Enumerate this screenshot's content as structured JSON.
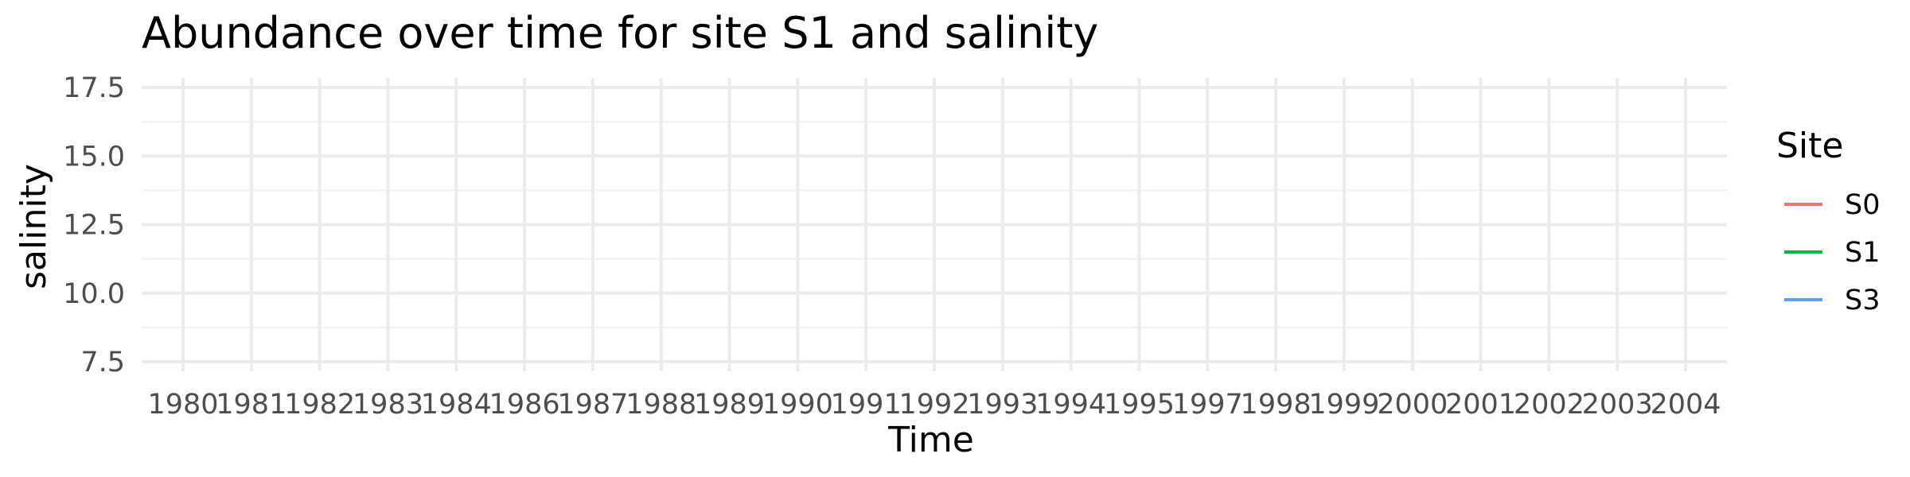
{
  "chart_data": {
    "type": "line",
    "title": "Abundance over time for site S1 and salinity",
    "xlabel": "Time",
    "ylabel": "salinity",
    "x_ticks": [
      "1980",
      "1981",
      "1982",
      "1983",
      "1984",
      "1986",
      "1987",
      "1988",
      "1989",
      "1990",
      "1991",
      "1992",
      "1993",
      "1994",
      "1995",
      "1997",
      "1998",
      "1999",
      "2000",
      "2001",
      "2002",
      "2003",
      "2004"
    ],
    "y_ticks": [
      7.5,
      10.0,
      12.5,
      15.0,
      17.5
    ],
    "ylim": [
      7.5,
      17.5
    ],
    "grid": true,
    "legend": {
      "title": "Site",
      "placement": "right",
      "entries": [
        {
          "name": "S0",
          "color": "#f8766d"
        },
        {
          "name": "S1",
          "color": "#00ba38"
        },
        {
          "name": "S3",
          "color": "#619cff"
        }
      ]
    },
    "series": [
      {
        "name": "S0",
        "values": []
      },
      {
        "name": "S1",
        "values": []
      },
      {
        "name": "S3",
        "values": []
      }
    ]
  }
}
